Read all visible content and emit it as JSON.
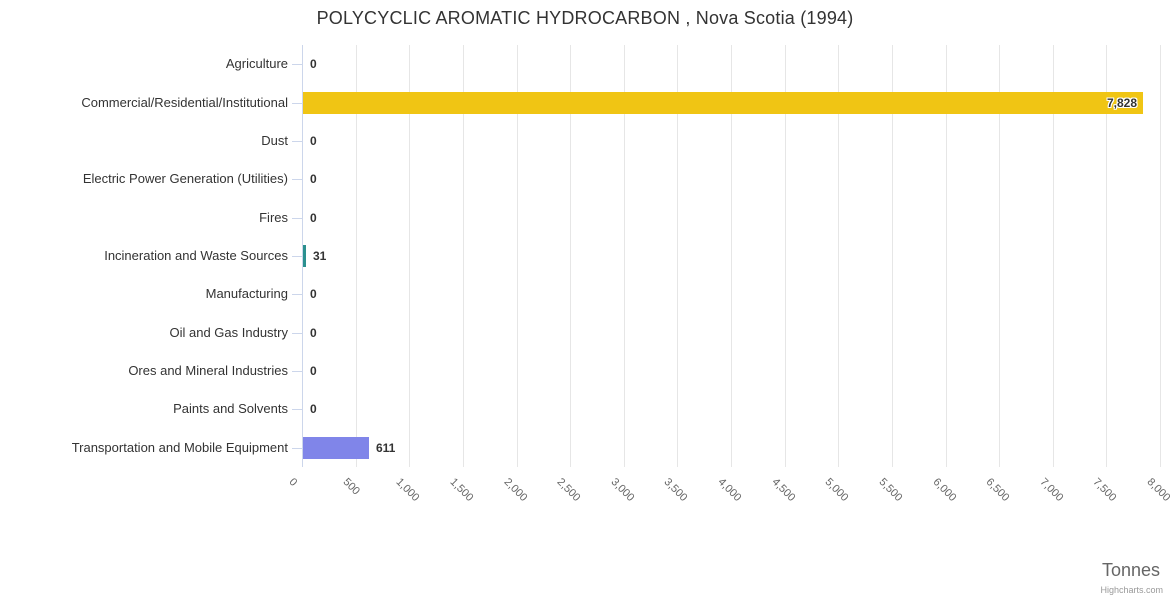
{
  "credits": {
    "label": "Highcharts.com"
  },
  "chart_data": {
    "type": "bar",
    "inverted": true,
    "title": "POLYCYCLIC AROMATIC HYDROCARBON , Nova Scotia (1994)",
    "xlabel": "Tonnes",
    "ylabel": "",
    "legend": false,
    "grid": true,
    "categories": [
      "Agriculture",
      "Commercial/Residential/Institutional",
      "Dust",
      "Electric Power Generation (Utilities)",
      "Fires",
      "Incineration and Waste Sources",
      "Manufacturing",
      "Oil and Gas Industry",
      "Ores and Mineral Industries",
      "Paints and Solvents",
      "Transportation and Mobile Equipment"
    ],
    "values": [
      0,
      7828,
      0,
      0,
      0,
      31,
      0,
      0,
      0,
      0,
      611
    ],
    "data_labels": [
      "0",
      "7,828",
      "0",
      "0",
      "0",
      "31",
      "0",
      "0",
      "0",
      "0",
      "611"
    ],
    "point_colors": [
      null,
      "#F0C514",
      null,
      null,
      null,
      "#2B908F",
      null,
      null,
      null,
      null,
      "#8085E9"
    ],
    "value_axis": {
      "min": 0,
      "max": 8000,
      "tick_interval": 500,
      "tick_labels": [
        "0",
        "500",
        "1,000",
        "1,500",
        "2,000",
        "2,500",
        "3,000",
        "3,500",
        "4,000",
        "4,500",
        "5,000",
        "5,500",
        "6,000",
        "6,500",
        "7,000",
        "7,500",
        "8,000"
      ],
      "label_rotation_deg": 45
    },
    "palette": {
      "grid_line": "#E6E6E6",
      "axis_line": "#CCD6EB",
      "title_text": "#333333",
      "tick_text": "#666666"
    }
  }
}
